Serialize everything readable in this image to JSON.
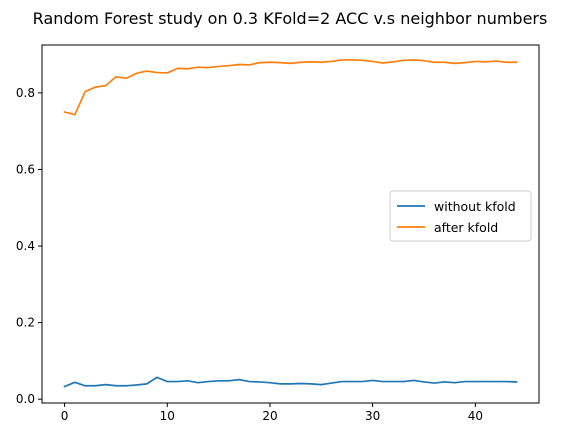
{
  "chart_data": {
    "type": "line",
    "title": "Random Forest study on 0.3 KFold=2 ACC v.s neighbor numbers",
    "xlabel": "",
    "ylabel": "",
    "x": [
      0,
      1,
      2,
      3,
      4,
      5,
      6,
      7,
      8,
      9,
      10,
      11,
      12,
      13,
      14,
      15,
      16,
      17,
      18,
      19,
      20,
      21,
      22,
      23,
      24,
      25,
      26,
      27,
      28,
      29,
      30,
      31,
      32,
      33,
      34,
      35,
      36,
      37,
      38,
      39,
      40,
      41,
      42,
      43,
      44
    ],
    "xlim": [
      -2.2,
      46.2
    ],
    "ylim": [
      -0.01,
      0.925
    ],
    "xticks": [
      0,
      10,
      20,
      30,
      40
    ],
    "xtick_labels": [
      "0",
      "10",
      "20",
      "30",
      "40"
    ],
    "yticks": [
      0.0,
      0.2,
      0.4,
      0.6,
      0.8
    ],
    "ytick_labels": [
      "0.0",
      "0.2",
      "0.4",
      "0.6",
      "0.8"
    ],
    "grid": false,
    "legend_position": "center-right",
    "series": [
      {
        "name": "without kfold",
        "color": "#1f77b4",
        "values": [
          0.033,
          0.044,
          0.035,
          0.035,
          0.038,
          0.035,
          0.035,
          0.037,
          0.04,
          0.057,
          0.046,
          0.046,
          0.048,
          0.043,
          0.046,
          0.048,
          0.048,
          0.051,
          0.046,
          0.045,
          0.043,
          0.04,
          0.04,
          0.041,
          0.04,
          0.038,
          0.042,
          0.046,
          0.046,
          0.046,
          0.049,
          0.046,
          0.046,
          0.046,
          0.049,
          0.045,
          0.042,
          0.045,
          0.043,
          0.046,
          0.046,
          0.046,
          0.046,
          0.046,
          0.045
        ]
      },
      {
        "name": "after kfold",
        "color": "#ff7f0e",
        "values": [
          0.75,
          0.743,
          0.803,
          0.815,
          0.819,
          0.842,
          0.838,
          0.851,
          0.857,
          0.853,
          0.852,
          0.864,
          0.863,
          0.867,
          0.866,
          0.869,
          0.871,
          0.874,
          0.873,
          0.879,
          0.88,
          0.879,
          0.877,
          0.88,
          0.881,
          0.88,
          0.882,
          0.886,
          0.886,
          0.885,
          0.882,
          0.878,
          0.881,
          0.885,
          0.886,
          0.884,
          0.88,
          0.88,
          0.877,
          0.879,
          0.882,
          0.881,
          0.883,
          0.88,
          0.88
        ]
      }
    ]
  }
}
